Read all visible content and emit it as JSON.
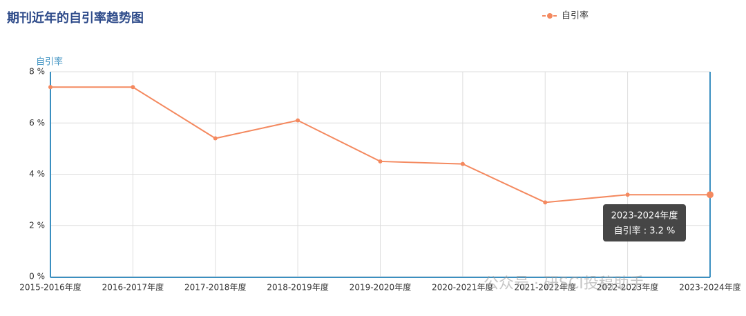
{
  "chart_data": {
    "type": "line",
    "title": "期刊近年的自引率趋势图",
    "y_axis_label": "自引率",
    "categories": [
      "2015-2016年度",
      "2016-2017年度",
      "2017-2018年度",
      "2018-2019年度",
      "2019-2020年度",
      "2020-2021年度",
      "2021-2022年度",
      "2022-2023年度",
      "2023-2024年度"
    ],
    "series": [
      {
        "name": "自引率",
        "color": "#f4895f",
        "values": [
          7.4,
          7.4,
          5.4,
          6.1,
          4.5,
          4.4,
          2.9,
          3.2,
          3.2
        ]
      }
    ],
    "ylim": [
      0,
      8
    ],
    "yticks": [
      {
        "value": 0,
        "label": "0 %"
      },
      {
        "value": 2,
        "label": "2 %"
      },
      {
        "value": 4,
        "label": "4 %"
      },
      {
        "value": 6,
        "label": "6 %"
      },
      {
        "value": 8,
        "label": "8 %"
      }
    ],
    "grid": true,
    "legend": "top-right",
    "tooltip": {
      "title": "2023-2024年度",
      "label": "自引率 : 3.2 %"
    },
    "watermark": "公众号 · 研SCI投稿助手"
  }
}
